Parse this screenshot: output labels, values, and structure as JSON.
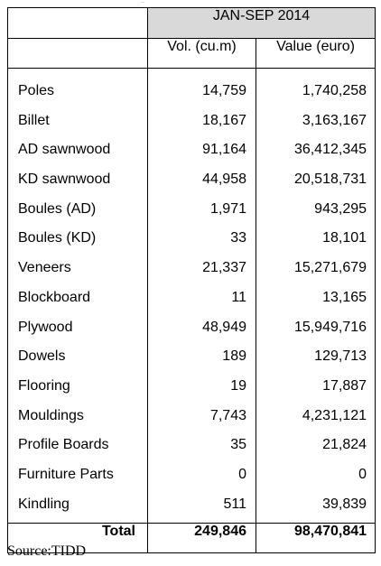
{
  "table": {
    "period": "JAN-SEP 2014",
    "columns": {
      "volume": "Vol. (cu.m)",
      "value": "Value (euro)"
    },
    "rows": [
      {
        "product": "Poles",
        "volume": "14,759",
        "value": "1,740,258"
      },
      {
        "product": "Billet",
        "volume": "18,167",
        "value": "3,163,167"
      },
      {
        "product": "AD sawnwood",
        "volume": "91,164",
        "value": "36,412,345"
      },
      {
        "product": "KD sawnwood",
        "volume": "44,958",
        "value": "20,518,731"
      },
      {
        "product": "Boules (AD)",
        "volume": "1,971",
        "value": "943,295"
      },
      {
        "product": "Boules (KD)",
        "volume": "33",
        "value": "18,101"
      },
      {
        "product": "Veneers",
        "volume": "21,337",
        "value": "15,271,679"
      },
      {
        "product": "Blockboard",
        "volume": "11",
        "value": "13,165"
      },
      {
        "product": "Plywood",
        "volume": "48,949",
        "value": "15,949,716"
      },
      {
        "product": "Dowels",
        "volume": "189",
        "value": "129,713"
      },
      {
        "product": "Flooring",
        "volume": "19",
        "value": "17,887"
      },
      {
        "product": "Mouldings",
        "volume": "7,743",
        "value": "4,231,121"
      },
      {
        "product": "Profile Boards",
        "volume": "35",
        "value": "21,824"
      },
      {
        "product": "Furniture Parts",
        "volume": "0",
        "value": "0"
      },
      {
        "product": "Kindling",
        "volume": "511",
        "value": "39,839"
      }
    ],
    "total": {
      "label": "Total",
      "volume": "249,846",
      "value": "98,470,841"
    }
  },
  "source": "Source:TIDD",
  "corner_mark": "··",
  "colors": {
    "header_fill": "#d9d9d9",
    "border": "#000000"
  }
}
